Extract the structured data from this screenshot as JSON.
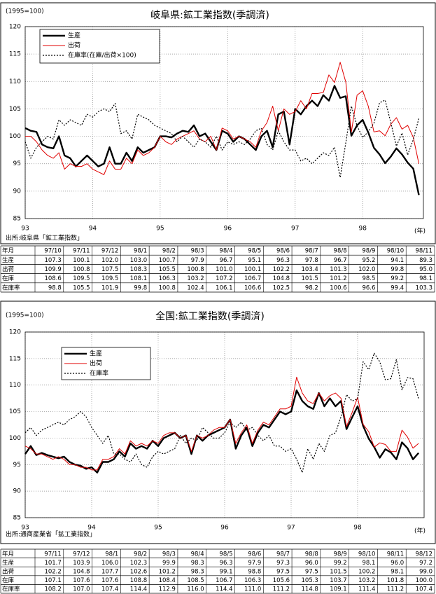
{
  "chart_data": [
    {
      "type": "line",
      "title": "岐阜県:鉱工業指数(季調済)",
      "note": "(1995=100)",
      "x_label": "(年)",
      "source": "出所:岐阜県「鉱工業指数」",
      "x": [
        93,
        93.083,
        93.167,
        93.25,
        93.333,
        93.417,
        93.5,
        93.583,
        93.667,
        93.75,
        93.833,
        93.917,
        94,
        94.083,
        94.167,
        94.25,
        94.333,
        94.417,
        94.5,
        94.583,
        94.667,
        94.75,
        94.833,
        94.917,
        95,
        95.083,
        95.167,
        95.25,
        95.333,
        95.417,
        95.5,
        95.583,
        95.667,
        95.75,
        95.833,
        95.917,
        96,
        96.083,
        96.167,
        96.25,
        96.333,
        96.417,
        96.5,
        96.583,
        96.667,
        96.75,
        96.833,
        96.917,
        97,
        97.083,
        97.167,
        97.25,
        97.333,
        97.417,
        97.5,
        97.583,
        97.667,
        97.75,
        97.833,
        97.917,
        98,
        98.083,
        98.167,
        98.25,
        98.333,
        98.417,
        98.5,
        98.583,
        98.667,
        98.75,
        98.833
      ],
      "xlim": [
        93,
        98.9
      ],
      "xticks": [
        93,
        94,
        95,
        96,
        97,
        98
      ],
      "ylim": [
        85,
        120
      ],
      "yticks": [
        85,
        90,
        95,
        100,
        105,
        110,
        115,
        120
      ],
      "grid": true,
      "series": [
        {
          "name": "生産",
          "color": "#000000",
          "line_style": "bold",
          "values": [
            101.5,
            101,
            100.8,
            98.5,
            98,
            97.8,
            100,
            96.5,
            96,
            94.5,
            95.5,
            96.5,
            95.5,
            94.5,
            95,
            98,
            95,
            95,
            97,
            95.5,
            98,
            97,
            97.5,
            98,
            100,
            100,
            99.8,
            100.5,
            101,
            100.8,
            102,
            100,
            100.5,
            99,
            97.5,
            101,
            100.5,
            99,
            100,
            99.5,
            98.5,
            97.5,
            100,
            101,
            98,
            104,
            104.5,
            98.5,
            105,
            104,
            105.5,
            106.5,
            105.5,
            107.5,
            106.5,
            109.2,
            107,
            107.3,
            100.1,
            102.0,
            103.0,
            100.7,
            97.9,
            96.7,
            95.1,
            96.3,
            97.8,
            96.7,
            95.2,
            94.1,
            89.3
          ]
        },
        {
          "name": "出荷",
          "color": "#e00000",
          "line_style": "solid",
          "values": [
            100,
            100,
            99,
            97.5,
            96.5,
            96,
            97,
            94,
            95,
            94.5,
            94.5,
            95,
            94,
            93.5,
            93,
            95.5,
            94,
            94,
            96,
            95,
            97.5,
            96.5,
            97,
            98,
            100,
            99,
            98.5,
            99.5,
            100,
            100.5,
            101,
            99.5,
            99,
            100,
            97.5,
            101.5,
            101,
            99.5,
            100,
            99.5,
            99,
            98,
            101,
            102.5,
            105.5,
            101,
            105,
            104,
            104.5,
            106.5,
            105,
            107.8,
            107.8,
            108,
            111.2,
            109.8,
            113.5,
            109.9,
            100.8,
            107.5,
            108.3,
            105.5,
            100.8,
            101.0,
            100.1,
            102.2,
            103.4,
            101.3,
            102.0,
            99.8,
            95.0
          ]
        },
        {
          "name": "在庫率(在庫/出荷×100)",
          "color": "#000000",
          "line_style": "dotted",
          "values": [
            99,
            96,
            98,
            99,
            100,
            99.5,
            103,
            102,
            103,
            102.5,
            102,
            104,
            103.5,
            104.5,
            105,
            104.5,
            106,
            100.5,
            101,
            99.5,
            104,
            103.5,
            103,
            102,
            101.5,
            101,
            100.5,
            99,
            100,
            99,
            98,
            99.5,
            99,
            98,
            100,
            97.5,
            99,
            98.5,
            99,
            98.5,
            99.5,
            101,
            101.5,
            98.5,
            97.5,
            101,
            99,
            97.5,
            97.5,
            95.5,
            96,
            95,
            96,
            97,
            96.5,
            98,
            92.5,
            98.8,
            105.5,
            101.9,
            99.8,
            100.8,
            102.4,
            106.1,
            106.6,
            102.5,
            98.2,
            100.6,
            96.6,
            99.4,
            103.3
          ]
        }
      ]
    },
    {
      "type": "line",
      "title": "全国:鉱工業指数(季調済)",
      "note": "(1995=100)",
      "x_label": "(年)",
      "source": "出所:通商産業省「鉱工業指数」",
      "x": [
        93,
        93.083,
        93.167,
        93.25,
        93.333,
        93.417,
        93.5,
        93.583,
        93.667,
        93.75,
        93.833,
        93.917,
        94,
        94.083,
        94.167,
        94.25,
        94.333,
        94.417,
        94.5,
        94.583,
        94.667,
        94.75,
        94.833,
        94.917,
        95,
        95.083,
        95.167,
        95.25,
        95.333,
        95.417,
        95.5,
        95.583,
        95.667,
        95.75,
        95.833,
        95.917,
        96,
        96.083,
        96.167,
        96.25,
        96.333,
        96.417,
        96.5,
        96.583,
        96.667,
        96.75,
        96.833,
        96.917,
        97,
        97.083,
        97.167,
        97.25,
        97.333,
        97.417,
        97.5,
        97.583,
        97.667,
        97.75,
        97.833,
        97.917,
        98,
        98.083,
        98.167,
        98.25,
        98.333,
        98.417,
        98.5,
        98.583,
        98.667,
        98.75,
        98.833,
        98.917
      ],
      "xlim": [
        93,
        99
      ],
      "xticks": [
        93,
        94,
        95,
        96,
        97,
        98
      ],
      "ylim": [
        85,
        120
      ],
      "yticks": [
        85,
        90,
        95,
        100,
        105,
        110,
        115,
        120
      ],
      "grid": true,
      "series": [
        {
          "name": "生産",
          "color": "#000000",
          "line_style": "bold",
          "values": [
            97,
            98.5,
            96.8,
            97.2,
            96.8,
            96.5,
            96.2,
            96.5,
            95.5,
            95,
            94.8,
            94.2,
            94.5,
            93.5,
            95.5,
            95.5,
            96,
            97.5,
            96.5,
            99,
            98,
            98.5,
            98,
            99.5,
            98.5,
            100,
            100.5,
            101,
            100,
            100.5,
            97,
            100.5,
            99.5,
            100.5,
            101,
            101.5,
            102,
            103.5,
            98,
            100.5,
            102,
            98.5,
            101,
            102.5,
            102,
            103.5,
            105,
            104.5,
            105,
            109,
            107,
            106,
            105.5,
            108.5,
            106,
            107.5,
            106,
            107,
            101.7,
            103.9,
            106.0,
            102.3,
            99.9,
            98.3,
            96.3,
            97.9,
            97.3,
            96.0,
            99.2,
            98.1,
            96.0,
            97.2
          ]
        },
        {
          "name": "出荷",
          "color": "#e00000",
          "line_style": "solid",
          "values": [
            98.5,
            98,
            97,
            97,
            96.5,
            96,
            96.5,
            96,
            95,
            95,
            94.5,
            94.5,
            94,
            94,
            96,
            96,
            96.5,
            98,
            97,
            99.5,
            98.5,
            99,
            98.5,
            99.5,
            99,
            100.5,
            101,
            101,
            100,
            100.5,
            97.5,
            100.5,
            100,
            100.5,
            101.5,
            102,
            102,
            103.5,
            99,
            101,
            102.5,
            99,
            101.5,
            103,
            102.5,
            104,
            105.5,
            105.5,
            106,
            111.5,
            108.5,
            107,
            106.5,
            108.5,
            107,
            108,
            108.5,
            107.5,
            102.2,
            104.8,
            107.7,
            102.6,
            101.2,
            98.3,
            99.1,
            98.8,
            97.5,
            97.5,
            101.5,
            100.2,
            98.1,
            99.0
          ]
        },
        {
          "name": "在庫率",
          "color": "#000000",
          "line_style": "dotted",
          "values": [
            101,
            102,
            100.5,
            101.5,
            102,
            102.5,
            103,
            102.5,
            103.5,
            104,
            105,
            104,
            102,
            100.5,
            99,
            100.5,
            97,
            97,
            96,
            95.5,
            97,
            95,
            94.5,
            96.5,
            97.5,
            97,
            97.5,
            98,
            100.5,
            99,
            100,
            99.5,
            102,
            101,
            100,
            100,
            101,
            103,
            102,
            103,
            101.5,
            102,
            100.5,
            99.5,
            100.5,
            98.5,
            98.5,
            97.5,
            98,
            96,
            93.5,
            98,
            96,
            99,
            97.5,
            100.5,
            101,
            104,
            108.2,
            107.0,
            107.4,
            114.4,
            112.9,
            116.0,
            114.4,
            111.0,
            111.2,
            114.8,
            109.1,
            111.4,
            111.2,
            107.4
          ]
        }
      ]
    }
  ],
  "tables": [
    {
      "header": [
        "年月",
        "97/10",
        "97/11",
        "97/12",
        "98/1",
        "98/2",
        "98/3",
        "98/4",
        "98/5",
        "98/6",
        "98/7",
        "98/8",
        "98/9",
        "98/10",
        "98/11"
      ],
      "rows": [
        [
          "生産",
          "107.3",
          "100.1",
          "102.0",
          "103.0",
          "100.7",
          "97.9",
          "96.7",
          "95.1",
          "96.3",
          "97.8",
          "96.7",
          "95.2",
          "94.1",
          "89.3"
        ],
        [
          "出荷",
          "109.9",
          "100.8",
          "107.5",
          "108.3",
          "105.5",
          "100.8",
          "101.0",
          "100.1",
          "102.2",
          "103.4",
          "101.3",
          "102.0",
          "99.8",
          "95.0"
        ],
        [
          "在庫",
          "108.6",
          "109.5",
          "109.5",
          "108.1",
          "106.3",
          "103.2",
          "107.2",
          "106.7",
          "104.8",
          "101.5",
          "101.2",
          "98.5",
          "99.2",
          "98.1"
        ],
        [
          "在庫率",
          "98.8",
          "105.5",
          "101.9",
          "99.8",
          "100.8",
          "102.4",
          "106.1",
          "106.6",
          "102.5",
          "98.2",
          "100.6",
          "96.6",
          "99.4",
          "103.3"
        ]
      ]
    },
    {
      "header": [
        "年月",
        "97/11",
        "97/12",
        "98/1",
        "98/2",
        "98/3",
        "98/4",
        "98/5",
        "98/6",
        "98/7",
        "98/8",
        "98/9",
        "98/10",
        "98/11",
        "98/12"
      ],
      "rows": [
        [
          "生産",
          "101.7",
          "103.9",
          "106.0",
          "102.3",
          "99.9",
          "98.3",
          "96.3",
          "97.9",
          "97.3",
          "96.0",
          "99.2",
          "98.1",
          "96.0",
          "97.2"
        ],
        [
          "出荷",
          "102.2",
          "104.8",
          "107.7",
          "102.6",
          "101.2",
          "98.3",
          "99.1",
          "98.8",
          "97.5",
          "97.5",
          "101.5",
          "100.2",
          "98.1",
          "99.0"
        ],
        [
          "在庫",
          "107.1",
          "107.6",
          "107.6",
          "108.8",
          "108.4",
          "108.5",
          "106.7",
          "106.3",
          "105.6",
          "105.3",
          "103.7",
          "103.2",
          "101.8",
          "100.0"
        ],
        [
          "在庫率",
          "108.2",
          "107.0",
          "107.4",
          "114.4",
          "112.9",
          "116.0",
          "114.4",
          "111.0",
          "111.2",
          "114.8",
          "109.1",
          "111.4",
          "111.2",
          "107.4"
        ]
      ]
    }
  ]
}
